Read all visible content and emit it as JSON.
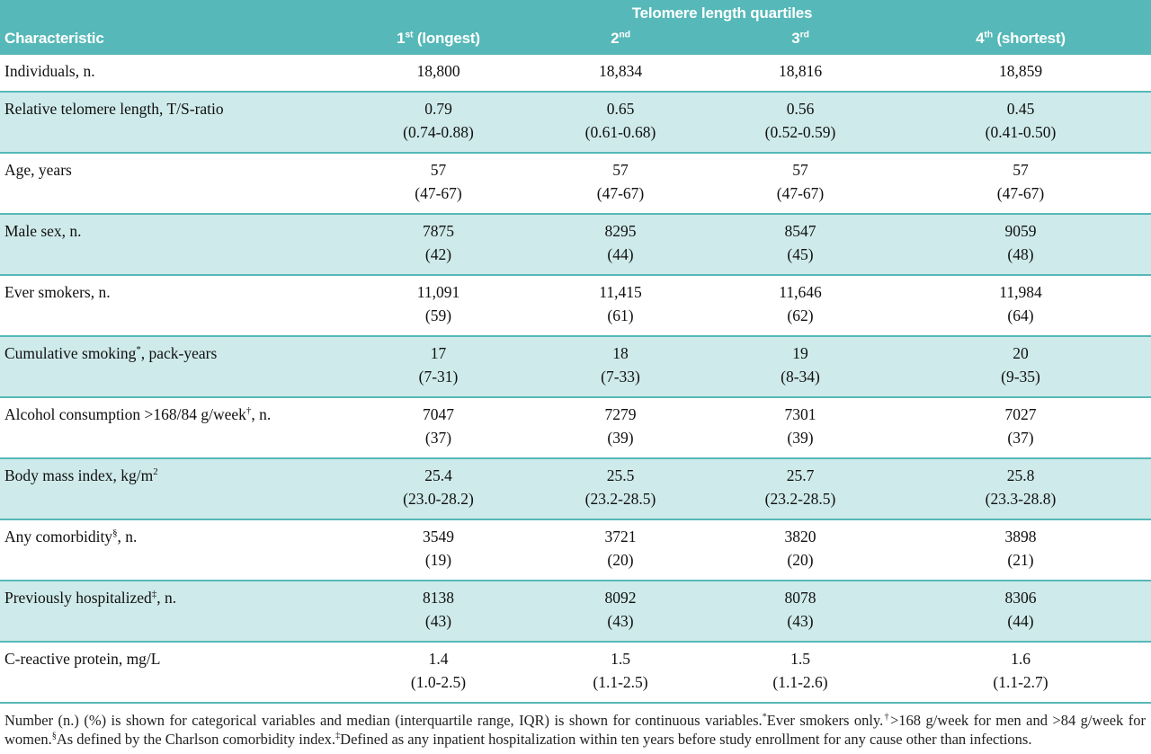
{
  "colors": {
    "header_teal": "#56b8b8",
    "row_band_teal": "#cfeaea",
    "rule_teal": "#56b8b8",
    "header_text": "#ffffff",
    "body_text": "#101010"
  },
  "table": {
    "title": "Telomere length quartiles",
    "characteristic_header": "Characteristic",
    "columns": [
      {
        "num": "1",
        "sup": "st",
        "rest": " (longest)"
      },
      {
        "num": "2",
        "sup": "nd",
        "rest": ""
      },
      {
        "num": "3",
        "sup": "rd",
        "rest": ""
      },
      {
        "num": "4",
        "sup": "th",
        "rest": " (shortest)"
      }
    ],
    "rows": [
      {
        "label": {
          "pre": "Individuals, n.",
          "sup": "",
          "post": ""
        },
        "values": [
          "18,800",
          "18,834",
          "18,816",
          "18,859"
        ],
        "sub": null,
        "shaded": false
      },
      {
        "label": {
          "pre": "Relative telomere length, T/S-ratio",
          "sup": "",
          "post": ""
        },
        "values": [
          "0.79",
          "0.65",
          "0.56",
          "0.45"
        ],
        "sub": [
          "(0.74-0.88)",
          "(0.61-0.68)",
          "(0.52-0.59)",
          "(0.41-0.50)"
        ],
        "shaded": true
      },
      {
        "label": {
          "pre": "Age, years",
          "sup": "",
          "post": ""
        },
        "values": [
          "57",
          "57",
          "57",
          "57"
        ],
        "sub": [
          "(47-67)",
          "(47-67)",
          "(47-67)",
          "(47-67)"
        ],
        "shaded": false
      },
      {
        "label": {
          "pre": "Male sex, n.",
          "sup": "",
          "post": ""
        },
        "values": [
          "7875",
          "8295",
          "8547",
          "9059"
        ],
        "sub": [
          "(42)",
          "(44)",
          "(45)",
          "(48)"
        ],
        "shaded": true
      },
      {
        "label": {
          "pre": "Ever smokers, n.",
          "sup": "",
          "post": ""
        },
        "values": [
          "11,091",
          "11,415",
          "11,646",
          "11,984"
        ],
        "sub": [
          "(59)",
          "(61)",
          "(62)",
          "(64)"
        ],
        "shaded": false
      },
      {
        "label": {
          "pre": "Cumulative smoking",
          "sup": "*",
          "post": ", pack-years"
        },
        "values": [
          "17",
          "18",
          "19",
          "20"
        ],
        "sub": [
          "(7-31)",
          "(7-33)",
          "(8-34)",
          "(9-35)"
        ],
        "shaded": true
      },
      {
        "label": {
          "pre": "Alcohol consumption >168/84 g/week",
          "sup": "†",
          "post": ", n."
        },
        "values": [
          "7047",
          "7279",
          "7301",
          "7027"
        ],
        "sub": [
          "(37)",
          "(39)",
          "(39)",
          "(37)"
        ],
        "shaded": false
      },
      {
        "label": {
          "pre": "Body mass index, kg/m",
          "sup": "2",
          "post": ""
        },
        "values": [
          "25.4",
          "25.5",
          "25.7",
          "25.8"
        ],
        "sub": [
          "(23.0-28.2)",
          "(23.2-28.5)",
          "(23.2-28.5)",
          "(23.3-28.8)"
        ],
        "shaded": true
      },
      {
        "label": {
          "pre": "Any comorbidity",
          "sup": "§",
          "post": ", n."
        },
        "values": [
          "3549",
          "3721",
          "3820",
          "3898"
        ],
        "sub": [
          "(19)",
          "(20)",
          "(20)",
          "(21)"
        ],
        "shaded": false
      },
      {
        "label": {
          "pre": "Previously hospitalized",
          "sup": "‡",
          "post": ", n."
        },
        "values": [
          "8138",
          "8092",
          "8078",
          "8306"
        ],
        "sub": [
          "(43)",
          "(43)",
          "(43)",
          "(44)"
        ],
        "shaded": true
      },
      {
        "label": {
          "pre": "C-reactive protein, mg/L",
          "sup": "",
          "post": ""
        },
        "values": [
          "1.4",
          "1.5",
          "1.5",
          "1.6"
        ],
        "sub": [
          "(1.0-2.5)",
          "(1.1-2.5)",
          "(1.1-2.6)",
          "(1.1-2.7)"
        ],
        "shaded": false
      }
    ],
    "footnote_segments": [
      {
        "sup": "",
        "text": "Number (n.) (%) is shown for categorical variables and median (interquartile range, IQR) is shown for continuous variables."
      },
      {
        "sup": "*",
        "text": "Ever smokers only."
      },
      {
        "sup": "†",
        "text": ">168 g/week for men and >84 g/week for women."
      },
      {
        "sup": "§",
        "text": "As defined by the Charlson comorbidity index."
      },
      {
        "sup": "‡",
        "text": "Defined as any inpatient hospitalization within ten years before study enrollment for any cause other than infections."
      }
    ]
  }
}
